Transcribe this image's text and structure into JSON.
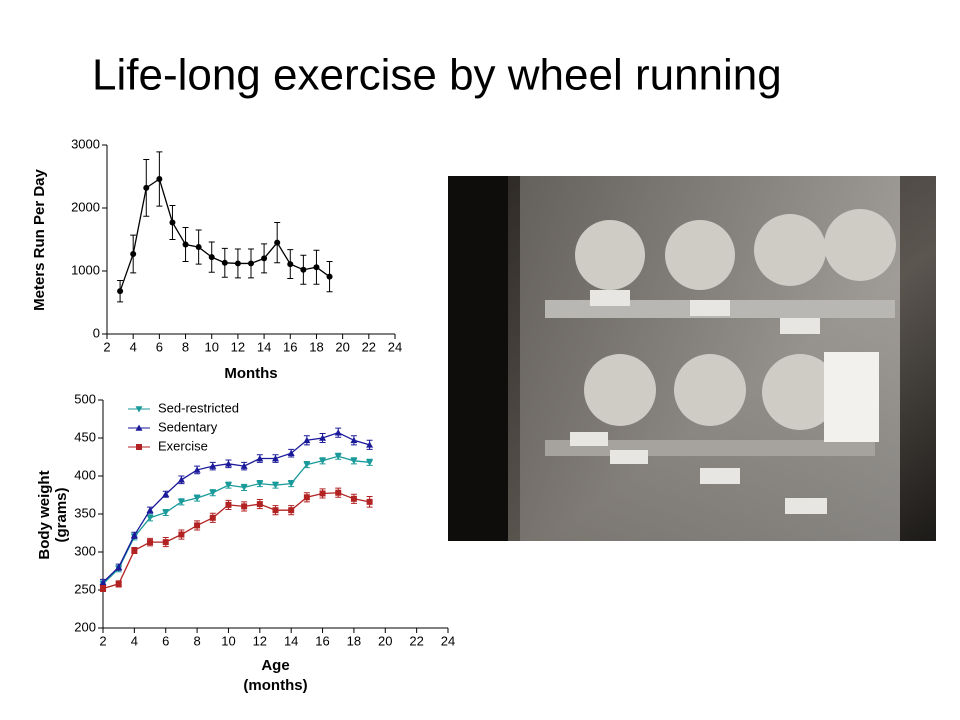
{
  "title": "Life-long exercise by wheel running",
  "chart_data": [
    {
      "type": "line",
      "xlabel": "Months",
      "ylabel": [
        "Meters Run Per Day"
      ],
      "x": [
        3,
        4,
        5,
        6,
        7,
        8,
        9,
        10,
        11,
        12,
        13,
        14,
        15,
        16,
        17,
        18,
        19
      ],
      "series": [
        {
          "color": "#000000",
          "marker": "circle",
          "values": [
            680,
            1270,
            2320,
            2460,
            1770,
            1420,
            1380,
            1220,
            1130,
            1120,
            1120,
            1200,
            1450,
            1110,
            1020,
            1060,
            910
          ],
          "errors": [
            170,
            300,
            450,
            430,
            270,
            270,
            270,
            240,
            230,
            230,
            230,
            230,
            320,
            230,
            230,
            270,
            240
          ]
        }
      ],
      "xlim": [
        2,
        24
      ],
      "xticks": [
        2,
        4,
        6,
        8,
        10,
        12,
        14,
        16,
        18,
        20,
        22,
        24
      ],
      "ylim": [
        0,
        3000
      ],
      "yticks": [
        0,
        1000,
        2000,
        3000
      ]
    },
    {
      "type": "line",
      "xlabel": [
        "Age",
        "(months)"
      ],
      "ylabel": [
        "Body weight",
        "(grams)"
      ],
      "legend": "upper-left",
      "x": [
        2,
        3,
        4,
        5,
        6,
        7,
        8,
        9,
        10,
        11,
        12,
        13,
        14,
        15,
        16,
        17,
        18,
        19
      ],
      "series": [
        {
          "name": "Sed-restricted",
          "color": "#1a9a9a",
          "marker": "triangle-down",
          "values": [
            258,
            278,
            320,
            345,
            352,
            366,
            371,
            378,
            388,
            385,
            390,
            388,
            390,
            415,
            420,
            426,
            420,
            418
          ],
          "errors": [
            4,
            4,
            4,
            4,
            4,
            4,
            4,
            4,
            4,
            4,
            4,
            4,
            4,
            4,
            4,
            4,
            4,
            4
          ]
        },
        {
          "name": "Sedentary",
          "color": "#1a1a9a",
          "marker": "triangle-up",
          "values": [
            260,
            280,
            322,
            355,
            376,
            395,
            408,
            413,
            416,
            413,
            423,
            423,
            430,
            447,
            450,
            457,
            447,
            441
          ],
          "errors": [
            4,
            4,
            4,
            4,
            4,
            5,
            5,
            5,
            5,
            5,
            5,
            5,
            5,
            6,
            6,
            6,
            6,
            6
          ]
        },
        {
          "name": "Exercise",
          "color": "#b22222",
          "marker": "square",
          "values": [
            252,
            258,
            302,
            313,
            313,
            323,
            335,
            345,
            362,
            360,
            363,
            355,
            355,
            372,
            377,
            378,
            370,
            366
          ],
          "errors": [
            4,
            4,
            4,
            5,
            6,
            6,
            6,
            6,
            6,
            6,
            6,
            6,
            6,
            6,
            6,
            6,
            6,
            7
          ]
        }
      ],
      "xlim": [
        2,
        24
      ],
      "xticks": [
        2,
        4,
        6,
        8,
        10,
        12,
        14,
        16,
        18,
        20,
        22,
        24
      ],
      "ylim": [
        200,
        500
      ],
      "yticks": [
        200,
        250,
        300,
        350,
        400,
        450,
        500
      ]
    }
  ]
}
